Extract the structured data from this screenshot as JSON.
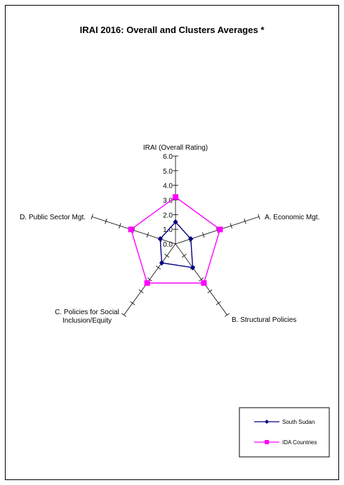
{
  "chart_data": {
    "type": "radar",
    "title": "IRAI 2016: Overall and Clusters Averages *",
    "axes": [
      "IRAI (Overall Rating)",
      "A. Economic Mgt.",
      "B. Structural Policies",
      [
        "C. Policies for Social",
        "Inclusion/Equity"
      ],
      "D. Public Sector Mgt."
    ],
    "tick_labels": [
      "0.0",
      "1.0",
      "2.0",
      "3.0",
      "4.0",
      "5.0",
      "6.0"
    ],
    "rlim": [
      0,
      6
    ],
    "series": [
      {
        "name": "South Sudan",
        "color": "#000080",
        "marker": "diamond",
        "values": [
          1.5,
          1.1,
          2.0,
          1.6,
          1.1
        ]
      },
      {
        "name": "IDA Countries",
        "color": "#FF00FF",
        "marker": "square",
        "values": [
          3.2,
          3.2,
          3.3,
          3.3,
          3.2
        ]
      }
    ],
    "legend_position": "bottom-right"
  }
}
